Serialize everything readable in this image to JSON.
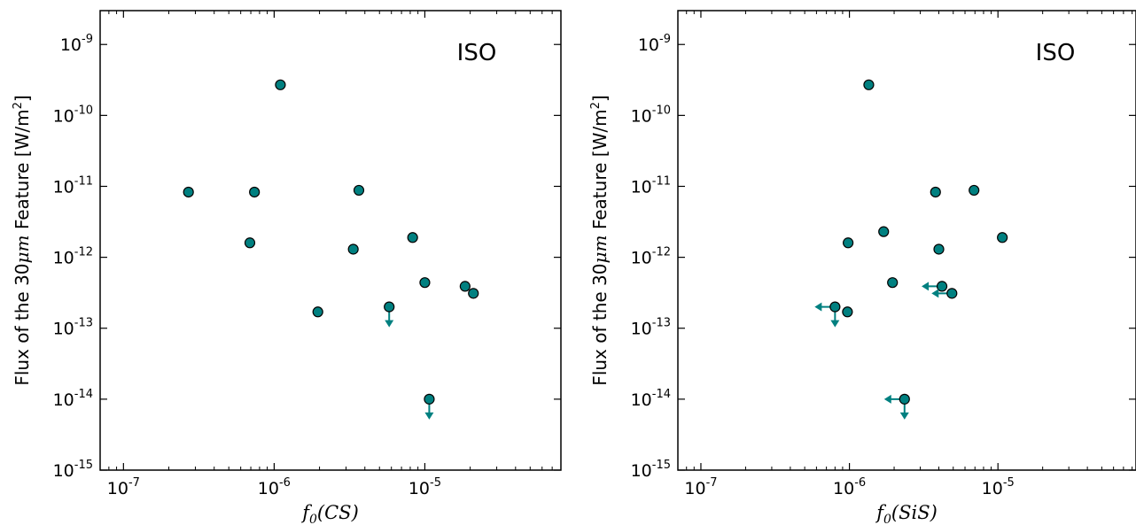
{
  "chart_data": [
    {
      "type": "scatter",
      "annotation": "ISO",
      "xlabel": "f_0(CS)",
      "xlabel_main": "f",
      "xlabel_sub": "0",
      "xlabel_arg": "(CS)",
      "ylabel_main": "Flux of the 30",
      "ylabel_unit_pre": " Feature [W/m",
      "ylabel_unit_sup": "2",
      "ylabel_unit_post": "]",
      "ylabel_mu": "μm",
      "xscale": "log",
      "yscale": "log",
      "xlim": [
        7e-08,
        8e-05
      ],
      "ylim": [
        1e-15,
        3e-09
      ],
      "marker_color": "#008080",
      "x_ticks": [
        {
          "value": 1e-07,
          "base": "10",
          "exp": "-7"
        },
        {
          "value": 1e-06,
          "base": "10",
          "exp": "-6"
        },
        {
          "value": 1e-05,
          "base": "10",
          "exp": "-5"
        }
      ],
      "y_ticks": [
        {
          "value": 1e-15,
          "base": "10",
          "exp": "-15"
        },
        {
          "value": 1e-14,
          "base": "10",
          "exp": "-14"
        },
        {
          "value": 1e-13,
          "base": "10",
          "exp": "-13"
        },
        {
          "value": 1e-12,
          "base": "10",
          "exp": "-12"
        },
        {
          "value": 1e-11,
          "base": "10",
          "exp": "-11"
        },
        {
          "value": 1e-10,
          "base": "10",
          "exp": "-10"
        },
        {
          "value": 1e-09,
          "base": "10",
          "exp": "-9"
        }
      ],
      "points": [
        {
          "x": 2.7e-07,
          "y": 8.3e-12
        },
        {
          "x": 7.4e-07,
          "y": 8.3e-12
        },
        {
          "x": 6.9e-07,
          "y": 1.6e-12
        },
        {
          "x": 1.1e-06,
          "y": 2.7e-10
        },
        {
          "x": 1.95e-06,
          "y": 1.7e-13
        },
        {
          "x": 3.35e-06,
          "y": 1.3e-12
        },
        {
          "x": 3.65e-06,
          "y": 8.8e-12
        },
        {
          "x": 5.8e-06,
          "y": 2e-13,
          "upper_y": true
        },
        {
          "x": 8.3e-06,
          "y": 1.9e-12
        },
        {
          "x": 1e-05,
          "y": 4.4e-13
        },
        {
          "x": 1.85e-05,
          "y": 3.9e-13
        },
        {
          "x": 2.1e-05,
          "y": 3.1e-13
        },
        {
          "x": 1.07e-05,
          "y": 1e-14,
          "upper_y": true
        }
      ]
    },
    {
      "type": "scatter",
      "annotation": "ISO",
      "xlabel": "f_0(SiS)",
      "xlabel_main": "f",
      "xlabel_sub": "0",
      "xlabel_arg": "(SiS)",
      "ylabel_main": "Flux of the 30",
      "ylabel_unit_pre": " Feature [W/m",
      "ylabel_unit_sup": "2",
      "ylabel_unit_post": "]",
      "ylabel_mu": "μm",
      "xscale": "log",
      "yscale": "log",
      "xlim": [
        7e-08,
        8.5e-05
      ],
      "ylim": [
        1e-15,
        3e-09
      ],
      "marker_color": "#008080",
      "x_ticks": [
        {
          "value": 1e-07,
          "base": "10",
          "exp": "-7"
        },
        {
          "value": 1e-06,
          "base": "10",
          "exp": "-6"
        },
        {
          "value": 1e-05,
          "base": "10",
          "exp": "-5"
        }
      ],
      "y_ticks": [
        {
          "value": 1e-15,
          "base": "10",
          "exp": "-15"
        },
        {
          "value": 1e-14,
          "base": "10",
          "exp": "-14"
        },
        {
          "value": 1e-13,
          "base": "10",
          "exp": "-13"
        },
        {
          "value": 1e-12,
          "base": "10",
          "exp": "-12"
        },
        {
          "value": 1e-11,
          "base": "10",
          "exp": "-11"
        },
        {
          "value": 1e-10,
          "base": "10",
          "exp": "-10"
        },
        {
          "value": 1e-09,
          "base": "10",
          "exp": "-9"
        }
      ],
      "points": [
        {
          "x": 1.35e-06,
          "y": 2.7e-10
        },
        {
          "x": 9.8e-07,
          "y": 1.6e-12
        },
        {
          "x": 1.7e-06,
          "y": 2.3e-12
        },
        {
          "x": 1.95e-06,
          "y": 4.4e-13
        },
        {
          "x": 8e-07,
          "y": 2e-13,
          "upper_x": true,
          "upper_y": true
        },
        {
          "x": 9.7e-07,
          "y": 1.7e-13
        },
        {
          "x": 3.8e-06,
          "y": 8.3e-12
        },
        {
          "x": 4e-06,
          "y": 1.3e-12
        },
        {
          "x": 4.2e-06,
          "y": 3.9e-13,
          "upper_x": true
        },
        {
          "x": 4.9e-06,
          "y": 3.1e-13,
          "upper_x": true
        },
        {
          "x": 6.9e-06,
          "y": 8.8e-12
        },
        {
          "x": 1.07e-05,
          "y": 1.9e-12
        },
        {
          "x": 2.35e-06,
          "y": 1e-14,
          "upper_x": true,
          "upper_y": true
        }
      ]
    }
  ]
}
